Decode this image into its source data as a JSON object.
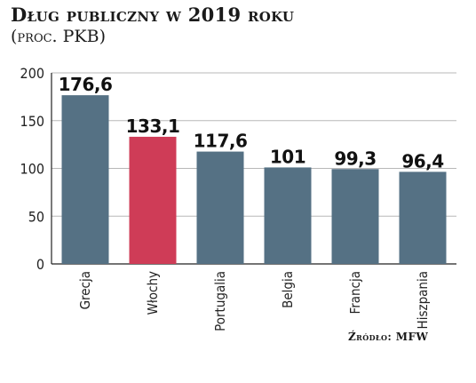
{
  "chart_data": {
    "type": "bar",
    "title": "Dług publiczny w 2019 roku",
    "subtitle": "(proc. PKB)",
    "categories": [
      "Grecja",
      "Włochy",
      "Portugalia",
      "Belgia",
      "Francja",
      "Hiszpania"
    ],
    "values": [
      176.6,
      133.1,
      117.6,
      101,
      99.3,
      96.4
    ],
    "value_labels": [
      "176,6",
      "133,1",
      "117,6",
      "101",
      "99,3",
      "96,4"
    ],
    "bar_colors": [
      "#557184",
      "#cf3c57",
      "#557184",
      "#557184",
      "#557184",
      "#557184"
    ],
    "ylim": [
      0,
      200
    ],
    "yticks": [
      0,
      50,
      100,
      150,
      200
    ],
    "grid": true,
    "source": "Źródło: MFW"
  }
}
